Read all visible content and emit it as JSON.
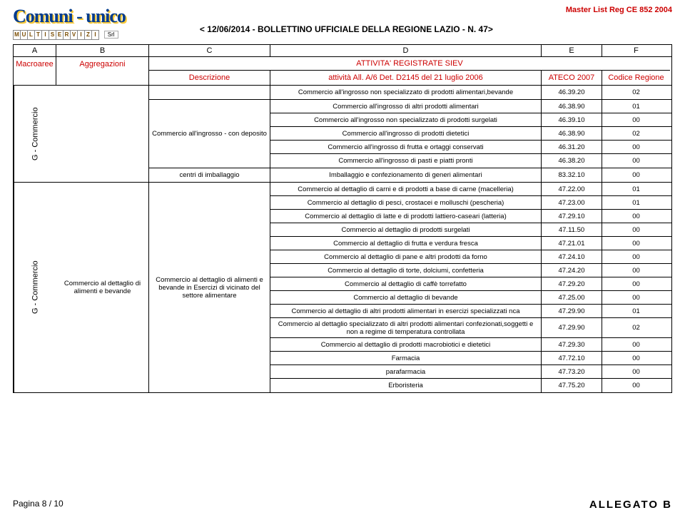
{
  "header": {
    "masterList": "Master List Reg CE 852 2004",
    "bulletin": "< 12/06/2014 - BOLLETTINO UFFICIALE DELLA REGIONE LAZIO - N. 47>",
    "logoMain": "Comuni - unico",
    "logoLetters": [
      "M",
      "U",
      "L",
      "T",
      "I",
      "S",
      "E",
      "R",
      "V",
      "I",
      "Z",
      "I"
    ],
    "logoSrl": "Srl"
  },
  "colors": {
    "accent_red": "#cc0000",
    "border": "#000000",
    "logo_blue": "#003b8f",
    "logo_gold": "#f9c938"
  },
  "columns": {
    "letters": [
      "A",
      "B",
      "C",
      "D",
      "E",
      "F"
    ],
    "labels": {
      "a": "Macroaree",
      "b": "Aggregazioni",
      "c": "Descrizione",
      "d_top": "ATTIVITA' REGISTRATE SIEV",
      "d_sub": "attività All. A/6 Det. D2145 del 21 luglio 2006",
      "e": "ATECO 2007",
      "f": "Codice Regione"
    }
  },
  "section1": {
    "macro": "G - Commercio",
    "aggr": "",
    "subgroups": [
      {
        "desc": "",
        "rows": [
          {
            "d": "Commercio all'ingrosso non specializzato di prodotti alimentari,bevande",
            "e": "46.39.20",
            "f": "02"
          }
        ]
      },
      {
        "desc": "Commercio all'ingrosso - con deposito",
        "rows": [
          {
            "d": "Commercio all'ingrosso di altri prodotti alimentari",
            "e": "46.38.90",
            "f": "01"
          },
          {
            "d": "Commercio all'ingrosso non specializzato di prodotti surgelati",
            "e": "46.39.10",
            "f": "00"
          },
          {
            "d": "Commercio all'ingrosso di prodotti dietetici",
            "e": "46.38.90",
            "f": "02"
          },
          {
            "d": "Commercio all'ingrosso di frutta e ortaggi conservati",
            "e": "46.31.20",
            "f": "00"
          },
          {
            "d": "Commercio all'ingrosso di pasti e piatti pronti",
            "e": "46.38.20",
            "f": "00"
          }
        ]
      },
      {
        "desc": "centri di imballaggio",
        "rows": [
          {
            "d": "Imballaggio e confezionamento di generi alimentari",
            "e": "83.32.10",
            "f": "00"
          }
        ]
      }
    ]
  },
  "section2": {
    "macro": "G - Commercio",
    "aggr": "Commercio al dettaglio di alimenti e bevande",
    "desc": "Commercio al dettaglio di alimenti e bevande in Esercizi di vicinato del settore alimentare",
    "rows": [
      {
        "d": "Commercio al dettaglio di carni e di prodotti a base di carne (macelleria)",
        "e": "47.22.00",
        "f": "01"
      },
      {
        "d": "Commercio al dettaglio di pesci, crostacei e molluschi (pescheria)",
        "e": "47.23.00",
        "f": "01"
      },
      {
        "d": "Commercio al dettaglio di latte e di prodotti lattiero-caseari (latteria)",
        "e": "47.29.10",
        "f": "00"
      },
      {
        "d": "Commercio al dettaglio di prodotti surgelati",
        "e": "47.11.50",
        "f": "00"
      },
      {
        "d": "Commercio al dettaglio di frutta e verdura fresca",
        "e": "47.21.01",
        "f": "00"
      },
      {
        "d": "Commercio al dettaglio di pane e altri prodotti da forno",
        "e": "47.24.10",
        "f": "00"
      },
      {
        "d": "Commercio al dettaglio di torte, dolciumi, confetteria",
        "e": "47.24.20",
        "f": "00"
      },
      {
        "d": "Commercio al dettaglio di caffè torrefatto",
        "e": "47.29.20",
        "f": "00"
      },
      {
        "d": "Commercio al dettaglio di bevande",
        "e": "47.25.00",
        "f": "00"
      },
      {
        "d": "Commercio al dettaglio di altri prodotti alimentari in esercizi specializzati nca",
        "e": "47.29.90",
        "f": "01"
      },
      {
        "d": "Commercio al dettaglio specializzato di altri prodotti alimentari confezionati,soggetti e non a regime di temperatura controllata",
        "e": "47.29.90",
        "f": "02"
      },
      {
        "d": "Commercio al dettaglio di prodotti macrobiotici e dietetici",
        "e": "47.29.30",
        "f": "00"
      },
      {
        "d": "Farmacia",
        "e": "47.72.10",
        "f": "00"
      },
      {
        "d": "parafarmacia",
        "e": "47.73.20",
        "f": "00"
      },
      {
        "d": "Erboristeria",
        "e": "47.75.20",
        "f": "00"
      }
    ]
  },
  "footer": {
    "page": "Pagina 8 / 10",
    "allegato": "ALLEGATO  B"
  }
}
